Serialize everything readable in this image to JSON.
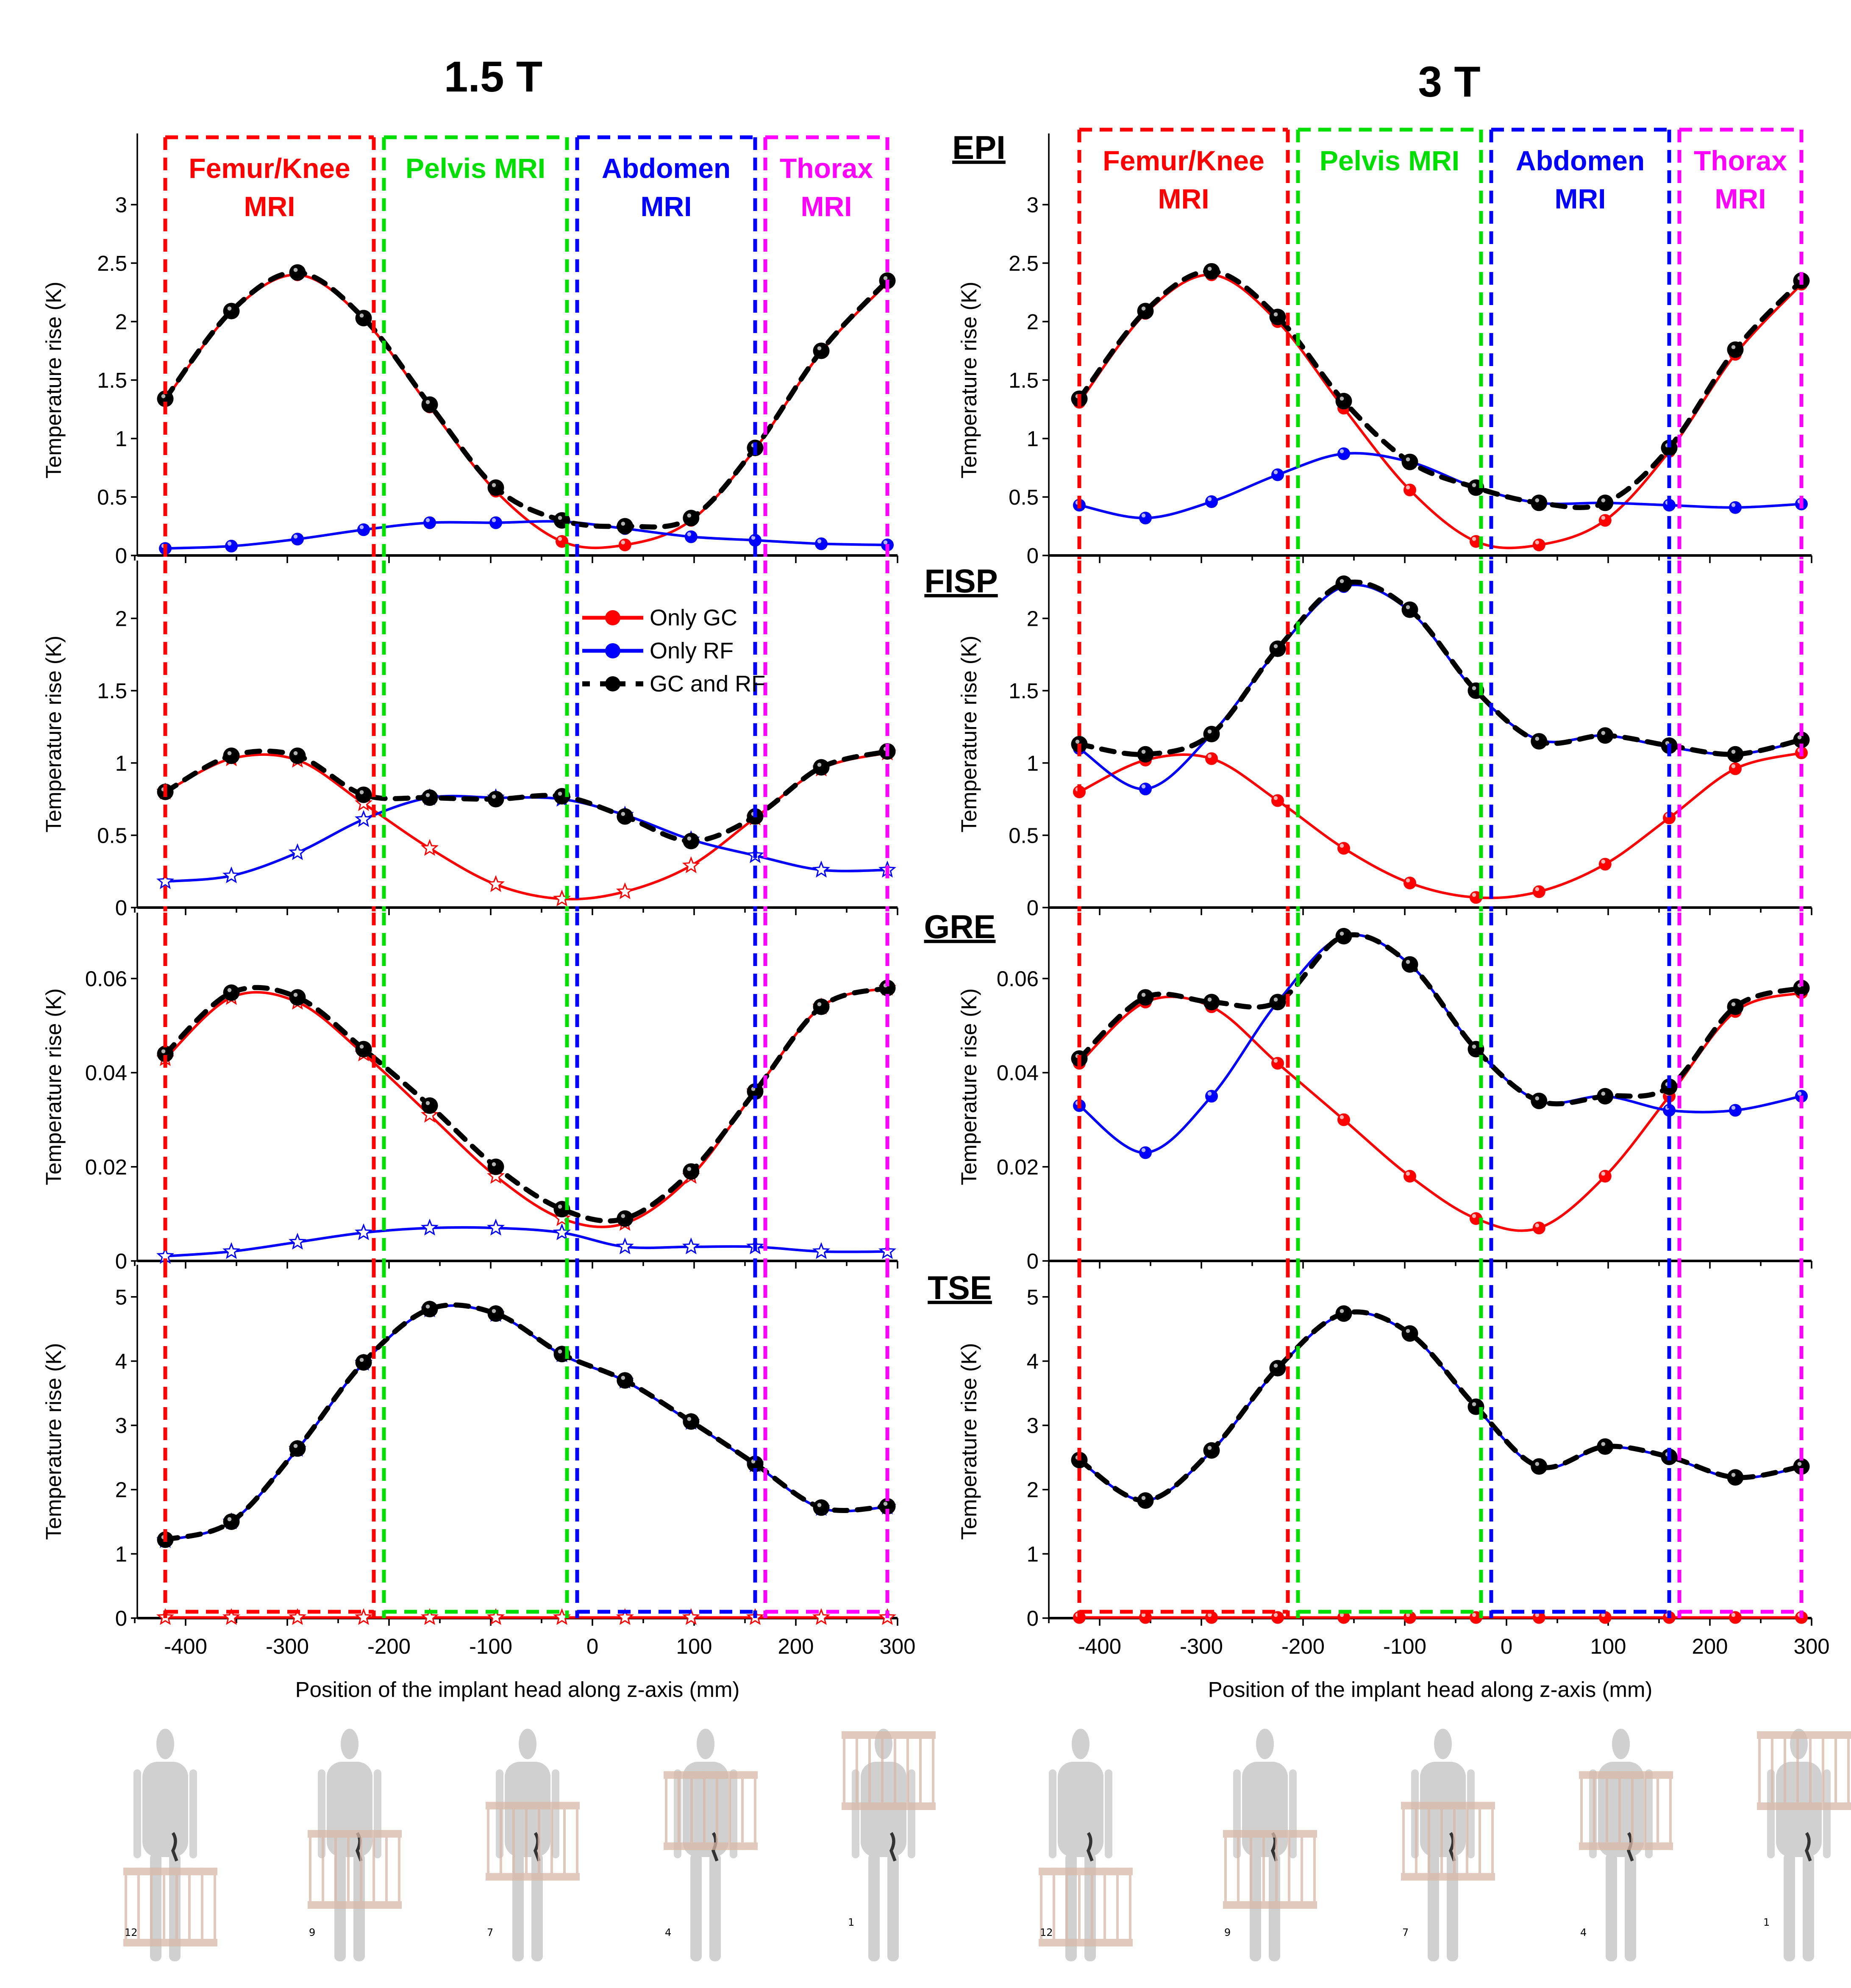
{
  "figure": {
    "field_titles": [
      "1.5 T",
      "3 T"
    ],
    "sequence_labels": [
      "EPI",
      "FISP",
      "GRE",
      "TSE"
    ],
    "region_labels": [
      {
        "line1": "Femur/Knee",
        "line2": "MRI",
        "color": "#ff0000"
      },
      {
        "line1": "Pelvis MRI",
        "line2": "",
        "color": "#00dd00"
      },
      {
        "line1": "Abdomen",
        "line2": "MRI",
        "color": "#0000ff"
      },
      {
        "line1": "Thorax",
        "line2": "MRI",
        "color": "#ff00ff"
      }
    ],
    "region_bounds_mm": [
      [
        -420,
        -215
      ],
      [
        -205,
        -25
      ],
      [
        -15,
        160
      ],
      [
        170,
        290
      ]
    ],
    "body_model_labels": [
      "12",
      "9",
      "7",
      "4",
      "1"
    ],
    "body_model_coil_center_mm": [
      -355,
      -225,
      -95,
      32,
      160
    ]
  },
  "legend": {
    "items": [
      {
        "label": "Only GC",
        "color": "#ff0000",
        "style": "solid"
      },
      {
        "label": "Only RF",
        "color": "#0000ff",
        "style": "solid"
      },
      {
        "label": "GC and RF",
        "color": "#000000",
        "style": "dashed"
      }
    ]
  },
  "chart_data": [
    {
      "type": "line",
      "field": "1.5 T",
      "sequence": "EPI",
      "xlabel": "",
      "ylabel": "Temperature rise (K)",
      "xlim": [
        -450,
        300
      ],
      "ylim": [
        0,
        3
      ],
      "yticks": [
        "0",
        "0.5",
        "1",
        "1.5",
        "2",
        "2.5",
        "3"
      ],
      "ytick_values": [
        0,
        0.5,
        1,
        1.5,
        2,
        2.5,
        3
      ],
      "x": [
        -420,
        -355,
        -290,
        -225,
        -160,
        -95,
        -30,
        32,
        97,
        160,
        225,
        290
      ],
      "series": [
        {
          "name": "Only GC",
          "values": [
            1.33,
            2.08,
            2.4,
            2.02,
            1.27,
            0.55,
            0.12,
            0.09,
            0.3,
            0.91,
            1.74,
            2.33
          ]
        },
        {
          "name": "Only RF",
          "values": [
            0.06,
            0.08,
            0.14,
            0.22,
            0.28,
            0.28,
            0.29,
            0.23,
            0.16,
            0.13,
            0.1,
            0.09
          ]
        },
        {
          "name": "GC and RF",
          "values": [
            1.34,
            2.09,
            2.42,
            2.03,
            1.29,
            0.58,
            0.3,
            0.25,
            0.32,
            0.92,
            1.75,
            2.35
          ]
        }
      ]
    },
    {
      "type": "line",
      "field": "1.5 T",
      "sequence": "FISP",
      "xlabel": "",
      "ylabel": "Temperature rise (K)",
      "xlim": [
        -450,
        300
      ],
      "ylim": [
        0,
        2.4
      ],
      "yticks": [
        "0",
        "0.5",
        "1",
        "1.5",
        "2"
      ],
      "ytick_values": [
        0,
        0.5,
        1,
        1.5,
        2
      ],
      "x": [
        -420,
        -355,
        -290,
        -225,
        -160,
        -95,
        -30,
        32,
        97,
        160,
        225,
        290
      ],
      "series": [
        {
          "name": "Only GC",
          "values": [
            0.8,
            1.03,
            1.02,
            0.72,
            0.41,
            0.16,
            0.06,
            0.11,
            0.29,
            0.62,
            0.96,
            1.07
          ]
        },
        {
          "name": "Only RF",
          "values": [
            0.18,
            0.22,
            0.38,
            0.61,
            0.76,
            0.76,
            0.75,
            0.64,
            0.47,
            0.36,
            0.26,
            0.26
          ]
        },
        {
          "name": "GC and RF",
          "values": [
            0.8,
            1.05,
            1.05,
            0.78,
            0.76,
            0.75,
            0.77,
            0.63,
            0.46,
            0.63,
            0.97,
            1.08
          ]
        }
      ]
    },
    {
      "type": "line",
      "field": "1.5 T",
      "sequence": "GRE",
      "xlabel": "",
      "ylabel": "Temperature rise (K)",
      "xlim": [
        -450,
        300
      ],
      "ylim": [
        0,
        0.074
      ],
      "yticks": [
        "0",
        "0.02",
        "0.04",
        "0.06"
      ],
      "ytick_values": [
        0,
        0.02,
        0.04,
        0.06
      ],
      "x": [
        -420,
        -355,
        -290,
        -225,
        -160,
        -95,
        -30,
        32,
        97,
        160,
        225,
        290
      ],
      "series": [
        {
          "name": "Only GC",
          "values": [
            0.043,
            0.056,
            0.055,
            0.044,
            0.031,
            0.018,
            0.009,
            0.008,
            0.018,
            0.036,
            0.054,
            0.058
          ]
        },
        {
          "name": "Only RF",
          "values": [
            0.001,
            0.002,
            0.004,
            0.006,
            0.007,
            0.007,
            0.006,
            0.003,
            0.003,
            0.003,
            0.002,
            0.002
          ]
        },
        {
          "name": "GC and RF",
          "values": [
            0.044,
            0.057,
            0.056,
            0.045,
            0.033,
            0.02,
            0.011,
            0.009,
            0.019,
            0.036,
            0.054,
            0.058
          ]
        }
      ]
    },
    {
      "type": "line",
      "field": "1.5 T",
      "sequence": "TSE",
      "xlabel": "Position of the implant head along z-axis (mm)",
      "ylabel": "Temperature rise (K)",
      "xlim": [
        -450,
        300
      ],
      "ylim": [
        0,
        5.5
      ],
      "yticks": [
        "0",
        "1",
        "2",
        "3",
        "4",
        "5"
      ],
      "ytick_values": [
        0,
        1,
        2,
        3,
        4,
        5
      ],
      "xticks": [
        "-400",
        "-300",
        "-200",
        "-100",
        "0",
        "100",
        "200",
        "300"
      ],
      "xtick_values": [
        -400,
        -300,
        -200,
        -100,
        0,
        100,
        200,
        300
      ],
      "x": [
        -420,
        -355,
        -290,
        -225,
        -160,
        -95,
        -30,
        32,
        97,
        160,
        225,
        290
      ],
      "series": [
        {
          "name": "Only GC",
          "values": [
            0.01,
            0.01,
            0.01,
            0.01,
            0.01,
            0.01,
            0.01,
            0.01,
            0.01,
            0.01,
            0.01,
            0.01
          ]
        },
        {
          "name": "Only RF",
          "values": [
            1.21,
            1.5,
            2.63,
            3.97,
            4.8,
            4.73,
            4.1,
            3.69,
            3.05,
            2.39,
            1.71,
            1.73
          ]
        },
        {
          "name": "GC and RF",
          "values": [
            1.22,
            1.5,
            2.64,
            3.98,
            4.81,
            4.74,
            4.11,
            3.7,
            3.06,
            2.4,
            1.72,
            1.74
          ]
        }
      ]
    },
    {
      "type": "line",
      "field": "3 T",
      "sequence": "EPI",
      "xlabel": "",
      "ylabel": "Temperature rise (K)",
      "xlim": [
        -450,
        300
      ],
      "ylim": [
        0,
        3
      ],
      "yticks": [
        "0",
        "0.5",
        "1",
        "1.5",
        "2",
        "2.5",
        "3"
      ],
      "ytick_values": [
        0,
        0.5,
        1,
        1.5,
        2,
        2.5,
        3
      ],
      "x": [
        -420,
        -355,
        -290,
        -225,
        -160,
        -95,
        -30,
        32,
        97,
        160,
        225,
        290
      ],
      "series": [
        {
          "name": "Only GC",
          "values": [
            1.31,
            2.07,
            2.4,
            2.0,
            1.26,
            0.56,
            0.12,
            0.09,
            0.3,
            0.89,
            1.72,
            2.32
          ]
        },
        {
          "name": "Only RF",
          "values": [
            0.43,
            0.32,
            0.46,
            0.69,
            0.87,
            0.8,
            0.58,
            0.45,
            0.45,
            0.43,
            0.41,
            0.44
          ]
        },
        {
          "name": "GC and RF",
          "values": [
            1.34,
            2.09,
            2.43,
            2.04,
            1.32,
            0.8,
            0.58,
            0.45,
            0.45,
            0.92,
            1.76,
            2.35
          ]
        }
      ]
    },
    {
      "type": "line",
      "field": "3 T",
      "sequence": "FISP",
      "xlabel": "",
      "ylabel": "Temperature rise (K)",
      "xlim": [
        -450,
        300
      ],
      "ylim": [
        0,
        2.4
      ],
      "yticks": [
        "0",
        "0.5",
        "1",
        "1.5",
        "2"
      ],
      "ytick_values": [
        0,
        0.5,
        1,
        1.5,
        2
      ],
      "x": [
        -420,
        -355,
        -290,
        -225,
        -160,
        -95,
        -30,
        32,
        97,
        160,
        225,
        290
      ],
      "series": [
        {
          "name": "Only GC",
          "values": [
            0.8,
            1.02,
            1.03,
            0.74,
            0.41,
            0.17,
            0.07,
            0.11,
            0.3,
            0.62,
            0.96,
            1.07
          ]
        },
        {
          "name": "Only RF",
          "values": [
            1.1,
            0.82,
            1.2,
            1.78,
            2.22,
            2.05,
            1.49,
            1.16,
            1.19,
            1.11,
            1.06,
            1.15
          ]
        },
        {
          "name": "GC and RF",
          "values": [
            1.13,
            1.06,
            1.2,
            1.79,
            2.24,
            2.06,
            1.5,
            1.15,
            1.19,
            1.12,
            1.06,
            1.16
          ]
        }
      ]
    },
    {
      "type": "line",
      "field": "3 T",
      "sequence": "GRE",
      "xlabel": "",
      "ylabel": "Temperature rise (K)",
      "xlim": [
        -450,
        300
      ],
      "ylim": [
        0,
        0.074
      ],
      "yticks": [
        "0",
        "0.02",
        "0.04",
        "0.06"
      ],
      "ytick_values": [
        0,
        0.02,
        0.04,
        0.06
      ],
      "x": [
        -420,
        -355,
        -290,
        -225,
        -160,
        -95,
        -30,
        32,
        97,
        160,
        225,
        290
      ],
      "series": [
        {
          "name": "Only GC",
          "values": [
            0.042,
            0.055,
            0.054,
            0.042,
            0.03,
            0.018,
            0.009,
            0.007,
            0.018,
            0.035,
            0.053,
            0.057
          ]
        },
        {
          "name": "Only RF",
          "values": [
            0.033,
            0.023,
            0.035,
            0.055,
            0.069,
            0.063,
            0.045,
            0.034,
            0.035,
            0.032,
            0.032,
            0.035
          ]
        },
        {
          "name": "GC and RF",
          "values": [
            0.043,
            0.056,
            0.055,
            0.055,
            0.069,
            0.063,
            0.045,
            0.034,
            0.035,
            0.037,
            0.054,
            0.058
          ]
        }
      ]
    },
    {
      "type": "line",
      "field": "3 T",
      "sequence": "TSE",
      "xlabel": "Position of the implant head along z-axis (mm)",
      "ylabel": "Temperature rise (K)",
      "xlim": [
        -450,
        300
      ],
      "ylim": [
        0,
        5.5
      ],
      "yticks": [
        "0",
        "1",
        "2",
        "3",
        "4",
        "5"
      ],
      "ytick_values": [
        0,
        1,
        2,
        3,
        4,
        5
      ],
      "xticks": [
        "-400",
        "-300",
        "-200",
        "-100",
        "0",
        "100",
        "200",
        "300"
      ],
      "xtick_values": [
        -400,
        -300,
        -200,
        -100,
        0,
        100,
        200,
        300
      ],
      "x": [
        -420,
        -355,
        -290,
        -225,
        -160,
        -95,
        -30,
        32,
        97,
        160,
        225,
        290
      ],
      "series": [
        {
          "name": "Only GC",
          "values": [
            0.01,
            0.01,
            0.01,
            0.01,
            0.01,
            0.01,
            0.01,
            0.01,
            0.01,
            0.01,
            0.01,
            0.01
          ]
        },
        {
          "name": "Only RF",
          "values": [
            2.45,
            1.83,
            2.6,
            3.88,
            4.73,
            4.42,
            3.28,
            2.35,
            2.66,
            2.5,
            2.18,
            2.35
          ]
        },
        {
          "name": "GC and RF",
          "values": [
            2.46,
            1.83,
            2.61,
            3.89,
            4.74,
            4.43,
            3.29,
            2.36,
            2.67,
            2.51,
            2.19,
            2.36
          ]
        }
      ]
    }
  ]
}
